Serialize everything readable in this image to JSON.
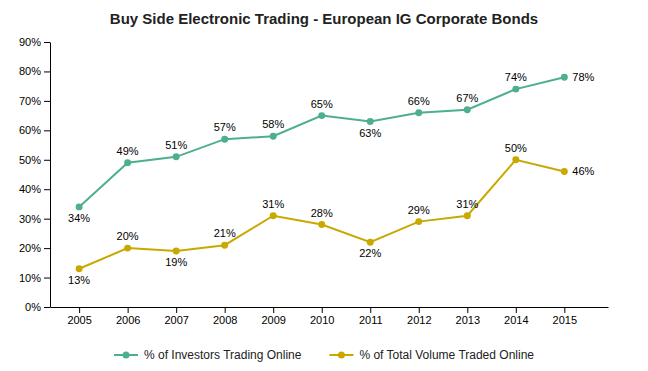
{
  "chart_data": {
    "type": "line",
    "title": "Buy Side Electronic Trading - European IG Corporate Bonds",
    "x": [
      2005,
      2006,
      2007,
      2008,
      2009,
      2010,
      2011,
      2012,
      2013,
      2014,
      2015
    ],
    "series": [
      {
        "name": "% of Investors Trading Online",
        "color": "#4DAF8D",
        "values": [
          0.34,
          0.49,
          0.51,
          0.57,
          0.58,
          0.65,
          0.63,
          0.66,
          0.67,
          0.74,
          0.78
        ],
        "value_labels": [
          "34%",
          "49%",
          "51%",
          "57%",
          "58%",
          "65%",
          "63%",
          "66%",
          "67%",
          "74%",
          "78%"
        ]
      },
      {
        "name": "% of Total Volume Traded Online",
        "color": "#C9A800",
        "values": [
          0.13,
          0.2,
          0.19,
          0.21,
          0.31,
          0.28,
          0.22,
          0.29,
          0.31,
          0.5,
          0.46
        ],
        "value_labels": [
          "13%",
          "20%",
          "19%",
          "21%",
          "31%",
          "28%",
          "22%",
          "29%",
          "31%",
          "50%",
          "46%"
        ]
      }
    ],
    "xlim": [
      2004.4,
      2015.9
    ],
    "xticks": [
      2005,
      2006,
      2007,
      2008,
      2009,
      2010,
      2011,
      2012,
      2013,
      2014,
      2015
    ],
    "ylim": [
      0,
      0.9
    ],
    "yticks": [
      {
        "value": 0.0,
        "label": "0%"
      },
      {
        "value": 0.1,
        "label": "10%"
      },
      {
        "value": 0.2,
        "label": "20%"
      },
      {
        "value": 0.3,
        "label": "30%"
      },
      {
        "value": 0.4,
        "label": "40%"
      },
      {
        "value": 0.5,
        "label": "50%"
      },
      {
        "value": 0.6,
        "label": "60%"
      },
      {
        "value": 0.7,
        "label": "70%"
      },
      {
        "value": 0.8,
        "label": "80%"
      },
      {
        "value": 0.9,
        "label": "90%"
      }
    ],
    "marker": "circle",
    "line_style": "solid",
    "data_labels": true,
    "grid": false,
    "legend": "bottom"
  }
}
